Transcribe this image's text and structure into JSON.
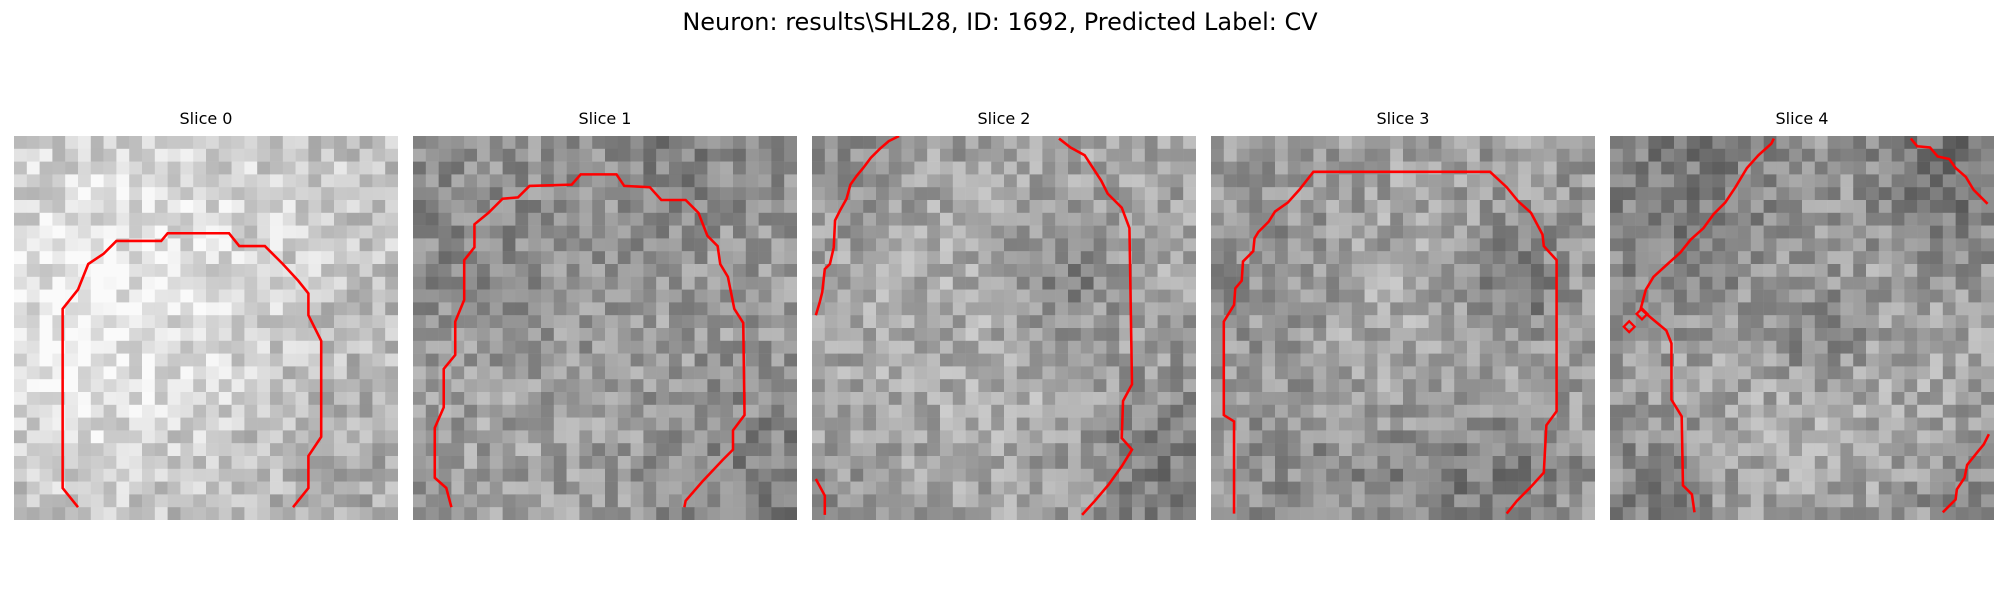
{
  "figure": {
    "title": "Neuron: results\\SHL28, ID: 1692, Predicted Label: CV"
  },
  "panels": [
    {
      "title": "Slice 0"
    },
    {
      "title": "Slice 1"
    },
    {
      "title": "Slice 2"
    },
    {
      "title": "Slice 3"
    },
    {
      "title": "Slice 4"
    }
  ],
  "contour_color": "#ff0000",
  "colormap": "gray"
}
